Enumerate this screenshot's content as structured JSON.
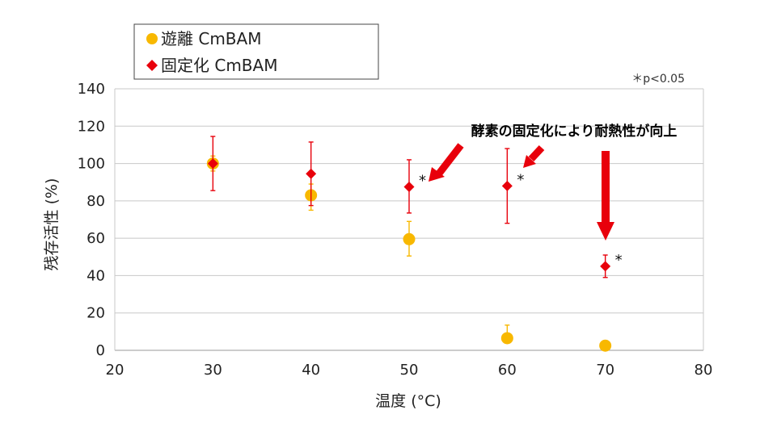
{
  "chart_data": {
    "type": "scatter",
    "title": "",
    "xlabel": "温度 (°C)",
    "ylabel": "残存活性 (%)",
    "xlim": [
      20,
      80
    ],
    "ylim": [
      0,
      140
    ],
    "xticks": [
      "20",
      "30",
      "40",
      "50",
      "60",
      "70",
      "80"
    ],
    "yticks": [
      "0",
      "20",
      "40",
      "60",
      "80",
      "100",
      "120",
      "140"
    ],
    "grid": true,
    "legend_position": "top-left, outside plot",
    "series": [
      {
        "name": "遊離 CmBAM",
        "marker": "circle",
        "color": "#F8B800",
        "points": [
          {
            "x": 30,
            "y": 100,
            "err_up": 4,
            "err_down": 4
          },
          {
            "x": 40,
            "y": 83,
            "err_up": 6,
            "err_down": 8
          },
          {
            "x": 50,
            "y": 59.5,
            "err_up": 9.5,
            "err_down": 9
          },
          {
            "x": 60,
            "y": 6.5,
            "err_up": 7,
            "err_down": 0
          },
          {
            "x": 70,
            "y": 2.5,
            "err_up": 0,
            "err_down": 0
          }
        ]
      },
      {
        "name": "固定化 CmBAM",
        "marker": "diamond",
        "color": "#E8000B",
        "points": [
          {
            "x": 30,
            "y": 100,
            "err_up": 14.5,
            "err_down": 14.5
          },
          {
            "x": 40,
            "y": 94.5,
            "err_up": 17,
            "err_down": 17
          },
          {
            "x": 50,
            "y": 87.5,
            "err_up": 14.5,
            "err_down": 14
          },
          {
            "x": 60,
            "y": 88,
            "err_up": 20,
            "err_down": 20
          },
          {
            "x": 70,
            "y": 45,
            "err_up": 6,
            "err_down": 6
          }
        ]
      }
    ],
    "significance_marks": [
      {
        "x": 50,
        "label": "*"
      },
      {
        "x": 60,
        "label": "*"
      },
      {
        "x": 70,
        "label": "*"
      }
    ],
    "significance_note": "＊p<0.05",
    "annotation": "酵素の固定化により耐熱性が向上"
  },
  "colors": {
    "free": "#F8B800",
    "immobilized": "#E8000B",
    "arrow": "#E8000B",
    "grid": "#C8C8C8"
  }
}
